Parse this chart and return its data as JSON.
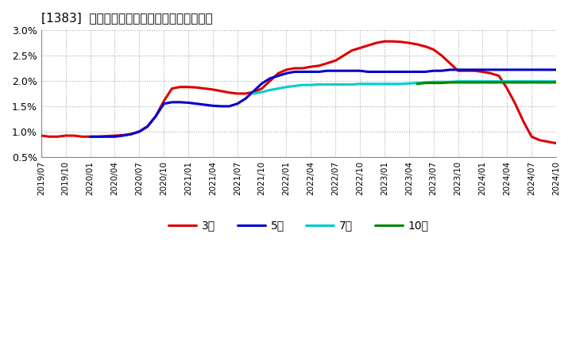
{
  "title": "[1383]  当期純利益マージンの標準偏差の推移",
  "ylim": [
    0.005,
    0.03
  ],
  "yticks": [
    0.005,
    0.01,
    0.015,
    0.02,
    0.025,
    0.03
  ],
  "ytick_labels": [
    "0.5%",
    "1.0%",
    "1.5%",
    "2.0%",
    "2.5%",
    "3.0%"
  ],
  "background_color": "#ffffff",
  "grid_color": "#aaaaaa",
  "series": {
    "3year": {
      "color": "#dd0000",
      "label": "3年",
      "x": [
        0,
        1,
        2,
        3,
        4,
        5,
        6,
        7,
        8,
        9,
        10,
        11,
        12,
        13,
        14,
        15,
        16,
        17,
        18,
        19,
        20,
        21,
        22,
        23,
        24,
        25,
        26,
        27,
        28,
        29,
        30,
        31,
        32,
        33,
        34,
        35,
        36,
        37,
        38,
        39,
        40,
        41,
        42,
        43,
        44,
        45,
        46,
        47,
        48,
        49,
        50,
        51,
        52,
        53,
        54,
        55,
        56,
        57,
        58,
        59,
        60,
        61,
        62,
        63,
        64
      ],
      "y": [
        0.0092,
        0.009,
        0.009,
        0.0092,
        0.0092,
        0.009,
        0.009,
        0.009,
        0.0091,
        0.0092,
        0.0093,
        0.0095,
        0.01,
        0.011,
        0.013,
        0.016,
        0.0185,
        0.0188,
        0.0188,
        0.0187,
        0.0185,
        0.0183,
        0.018,
        0.0177,
        0.0175,
        0.0175,
        0.0178,
        0.0185,
        0.02,
        0.0215,
        0.0222,
        0.0225,
        0.0225,
        0.0228,
        0.023,
        0.0235,
        0.024,
        0.025,
        0.026,
        0.0265,
        0.027,
        0.0275,
        0.0278,
        0.0278,
        0.0277,
        0.0275,
        0.0272,
        0.0268,
        0.0262,
        0.025,
        0.0235,
        0.022,
        0.022,
        0.022,
        0.0218,
        0.0215,
        0.021,
        0.0185,
        0.0155,
        0.012,
        0.009,
        0.0083,
        0.008,
        0.0077,
        0.0074
      ]
    },
    "5year": {
      "color": "#0000cc",
      "label": "5年",
      "x": [
        6,
        7,
        8,
        9,
        10,
        11,
        12,
        13,
        14,
        15,
        16,
        17,
        18,
        19,
        20,
        21,
        22,
        23,
        24,
        25,
        26,
        27,
        28,
        29,
        30,
        31,
        32,
        33,
        34,
        35,
        36,
        37,
        38,
        39,
        40,
        41,
        42,
        43,
        44,
        45,
        46,
        47,
        48,
        49,
        50,
        51,
        52,
        53,
        54,
        55,
        56,
        57,
        58,
        59,
        60,
        61,
        62,
        63,
        64
      ],
      "y": [
        0.009,
        0.009,
        0.009,
        0.009,
        0.0092,
        0.0095,
        0.01,
        0.011,
        0.013,
        0.0155,
        0.0158,
        0.0158,
        0.0157,
        0.0155,
        0.0153,
        0.0151,
        0.015,
        0.015,
        0.0155,
        0.0165,
        0.018,
        0.0195,
        0.0205,
        0.021,
        0.0215,
        0.0218,
        0.0218,
        0.0218,
        0.0218,
        0.022,
        0.022,
        0.022,
        0.022,
        0.022,
        0.0218,
        0.0218,
        0.0218,
        0.0218,
        0.0218,
        0.0218,
        0.0218,
        0.0218,
        0.022,
        0.022,
        0.0222,
        0.0222,
        0.0222,
        0.0222,
        0.0222,
        0.0222,
        0.0222,
        0.0222,
        0.0222,
        0.0222,
        0.0222,
        0.0222,
        0.0222,
        0.0222,
        0.0222
      ]
    },
    "7year": {
      "color": "#00cccc",
      "label": "7年",
      "x": [
        26,
        27,
        28,
        29,
        30,
        31,
        32,
        33,
        34,
        35,
        36,
        37,
        38,
        39,
        40,
        41,
        42,
        43,
        44,
        45,
        46,
        47,
        48,
        49,
        50,
        51,
        52,
        53,
        54,
        55,
        56,
        57,
        58,
        59,
        60,
        61,
        62,
        63,
        64
      ],
      "y": [
        0.0175,
        0.0178,
        0.0182,
        0.0185,
        0.0188,
        0.019,
        0.0192,
        0.0192,
        0.0193,
        0.0193,
        0.0193,
        0.0193,
        0.0193,
        0.0194,
        0.0194,
        0.0194,
        0.0194,
        0.0194,
        0.0194,
        0.0195,
        0.0196,
        0.0197,
        0.0198,
        0.0198,
        0.0198,
        0.0199,
        0.0199,
        0.0199,
        0.0199,
        0.0199,
        0.0199,
        0.0199,
        0.0199,
        0.0199,
        0.0199,
        0.0199,
        0.0199,
        0.0199,
        0.0199
      ]
    },
    "10year": {
      "color": "#008800",
      "label": "10年",
      "x": [
        46,
        47,
        48,
        49,
        50,
        51,
        52,
        53,
        54,
        55,
        56,
        57,
        58,
        59,
        60,
        61,
        62,
        63,
        64
      ],
      "y": [
        0.0194,
        0.0196,
        0.0196,
        0.0196,
        0.0197,
        0.0197,
        0.0197,
        0.0197,
        0.0197,
        0.0197,
        0.0197,
        0.0197,
        0.0197,
        0.0197,
        0.0197,
        0.0197,
        0.0197,
        0.0197,
        0.0197
      ]
    }
  },
  "xtick_labels": [
    "2019/07",
    "2019/10",
    "2020/01",
    "2020/04",
    "2020/07",
    "2020/10",
    "2021/01",
    "2021/04",
    "2021/07",
    "2021/10",
    "2022/01",
    "2022/04",
    "2022/07",
    "2022/10",
    "2023/01",
    "2023/04",
    "2023/07",
    "2023/10",
    "2024/01",
    "2024/04",
    "2024/07",
    "2024/10"
  ],
  "xtick_positions": [
    0,
    3,
    6,
    9,
    12,
    15,
    18,
    21,
    24,
    27,
    30,
    33,
    36,
    39,
    42,
    45,
    48,
    51,
    54,
    57,
    60,
    63
  ]
}
